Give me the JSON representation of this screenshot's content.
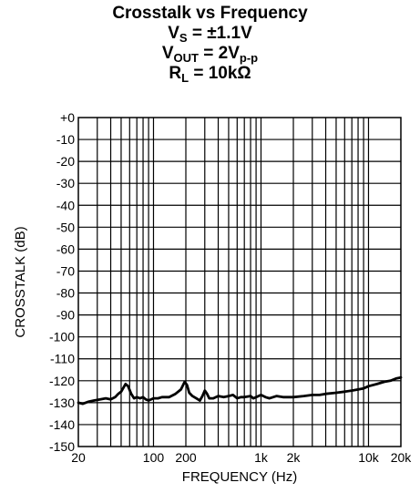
{
  "title": {
    "line1": "Crosstalk vs Frequency",
    "vs_main": "V",
    "vs_sub": "S",
    "vs_value": " = ±1.1V",
    "vout_main": "V",
    "vout_sub": "OUT",
    "vout_mid": " = 2V",
    "vout_sub2": "p-p",
    "rl_main": "R",
    "rl_sub": "L",
    "rl_value": " = 10kΩ"
  },
  "chart_data": {
    "type": "line",
    "title": "Crosstalk vs Frequency",
    "xlabel": "FREQUENCY (Hz)",
    "ylabel": "CROSSTALK (dB)",
    "xscale": "log",
    "xlim": [
      20,
      20000
    ],
    "ylim": [
      -150,
      0
    ],
    "grid": true,
    "x_ticks": [
      {
        "value": 20,
        "label": "20"
      },
      {
        "value": 100,
        "label": "100"
      },
      {
        "value": 200,
        "label": "200"
      },
      {
        "value": 1000,
        "label": "1k"
      },
      {
        "value": 2000,
        "label": "2k"
      },
      {
        "value": 10000,
        "label": "10k"
      },
      {
        "value": 20000,
        "label": "20k"
      }
    ],
    "y_ticks": [
      {
        "value": 0,
        "label": "+0"
      },
      {
        "value": -10,
        "label": "-10"
      },
      {
        "value": -20,
        "label": "-20"
      },
      {
        "value": -30,
        "label": "-30"
      },
      {
        "value": -40,
        "label": "-40"
      },
      {
        "value": -50,
        "label": "-50"
      },
      {
        "value": -60,
        "label": "-60"
      },
      {
        "value": -70,
        "label": "-70"
      },
      {
        "value": -80,
        "label": "-80"
      },
      {
        "value": -90,
        "label": "-90"
      },
      {
        "value": -100,
        "label": "-100"
      },
      {
        "value": -110,
        "label": "-110"
      },
      {
        "value": -120,
        "label": "-120"
      },
      {
        "value": -130,
        "label": "-130"
      },
      {
        "value": -140,
        "label": "-140"
      },
      {
        "value": -150,
        "label": "-150"
      }
    ],
    "series": [
      {
        "color": "#000000",
        "points": [
          [
            20,
            -130
          ],
          [
            22,
            -130.5
          ],
          [
            25,
            -129.5
          ],
          [
            28,
            -129
          ],
          [
            32,
            -128.5
          ],
          [
            36,
            -128
          ],
          [
            40,
            -128.5
          ],
          [
            44,
            -127.5
          ],
          [
            47,
            -126
          ],
          [
            50,
            -125
          ],
          [
            55,
            -121.5
          ],
          [
            58,
            -122.5
          ],
          [
            62,
            -126
          ],
          [
            66,
            -128
          ],
          [
            70,
            -127.5
          ],
          [
            75,
            -128
          ],
          [
            80,
            -127.5
          ],
          [
            85,
            -128.5
          ],
          [
            90,
            -129
          ],
          [
            100,
            -128
          ],
          [
            110,
            -128
          ],
          [
            120,
            -127.5
          ],
          [
            140,
            -127.5
          ],
          [
            160,
            -126
          ],
          [
            180,
            -124
          ],
          [
            195,
            -120.5
          ],
          [
            205,
            -122
          ],
          [
            215,
            -125.5
          ],
          [
            230,
            -127
          ],
          [
            250,
            -128
          ],
          [
            270,
            -129
          ],
          [
            285,
            -127
          ],
          [
            300,
            -124.5
          ],
          [
            315,
            -126
          ],
          [
            330,
            -128
          ],
          [
            360,
            -128
          ],
          [
            400,
            -127
          ],
          [
            450,
            -127.5
          ],
          [
            500,
            -127
          ],
          [
            550,
            -126.5
          ],
          [
            600,
            -128
          ],
          [
            650,
            -127.5
          ],
          [
            700,
            -127.5
          ],
          [
            800,
            -127
          ],
          [
            850,
            -128
          ],
          [
            900,
            -127.5
          ],
          [
            1000,
            -126.5
          ],
          [
            1100,
            -127.5
          ],
          [
            1200,
            -128
          ],
          [
            1400,
            -127
          ],
          [
            1600,
            -127.5
          ],
          [
            2000,
            -127.5
          ],
          [
            2500,
            -127
          ],
          [
            3000,
            -126.5
          ],
          [
            3500,
            -126.5
          ],
          [
            4000,
            -126
          ],
          [
            5000,
            -125.5
          ],
          [
            6000,
            -125
          ],
          [
            7000,
            -124.5
          ],
          [
            8000,
            -124
          ],
          [
            9000,
            -123.5
          ],
          [
            10000,
            -122.5
          ],
          [
            12000,
            -121.5
          ],
          [
            14000,
            -120.5
          ],
          [
            16000,
            -120
          ],
          [
            18000,
            -119
          ],
          [
            20000,
            -118.5
          ]
        ]
      }
    ]
  }
}
